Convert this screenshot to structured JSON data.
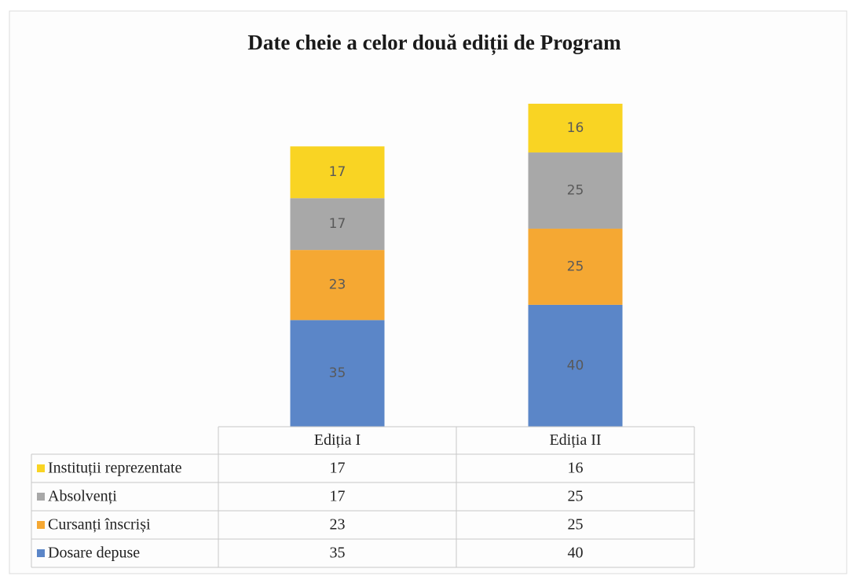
{
  "chart_data": {
    "type": "bar",
    "stacked": true,
    "title": "Date cheie a celor două ediții de Program",
    "categories": [
      "Ediția I",
      "Ediția II"
    ],
    "series": [
      {
        "name": "Dosare depuse",
        "color": "#5b86c8",
        "values": [
          35,
          40
        ]
      },
      {
        "name": "Cursanți înscriși",
        "color": "#f5a833",
        "values": [
          23,
          25
        ]
      },
      {
        "name": "Absolvenți",
        "color": "#a8a8a8",
        "values": [
          17,
          25
        ]
      },
      {
        "name": "Instituții reprezentate",
        "color": "#f9d423",
        "values": [
          17,
          16
        ]
      }
    ],
    "data_table": true
  }
}
